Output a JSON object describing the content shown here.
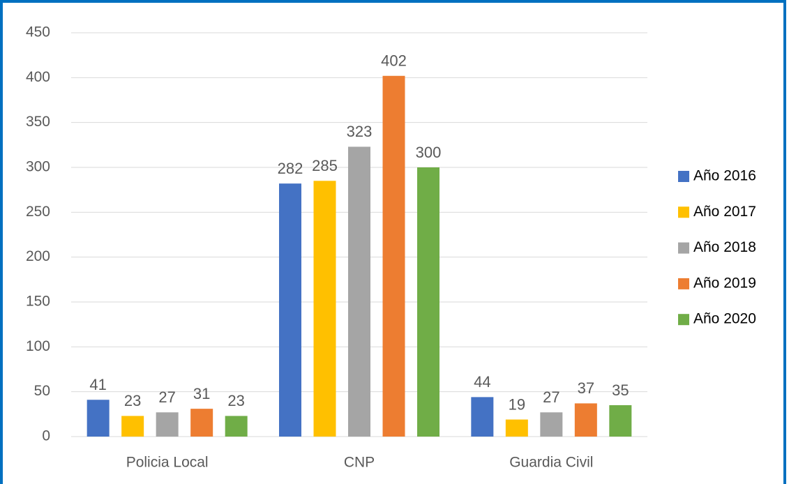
{
  "chart_data": {
    "type": "bar",
    "categories": [
      "Policia Local",
      "CNP",
      "Guardia Civil"
    ],
    "series": [
      {
        "name": "Año 2016",
        "color": "#4472c4",
        "values": [
          41,
          282,
          44
        ]
      },
      {
        "name": "Año 2017",
        "color": "#ffc000",
        "values": [
          23,
          285,
          19
        ]
      },
      {
        "name": "Año 2018",
        "color": "#a5a5a5",
        "values": [
          27,
          323,
          27
        ]
      },
      {
        "name": "Año 2019",
        "color": "#ed7d31",
        "values": [
          31,
          402,
          37
        ]
      },
      {
        "name": "Año 2020",
        "color": "#70ad47",
        "values": [
          23,
          300,
          35
        ]
      }
    ],
    "ylim": [
      0,
      450
    ],
    "yticks": [
      0,
      50,
      100,
      150,
      200,
      250,
      300,
      350,
      400,
      450
    ],
    "grid": true,
    "legend": "right"
  }
}
